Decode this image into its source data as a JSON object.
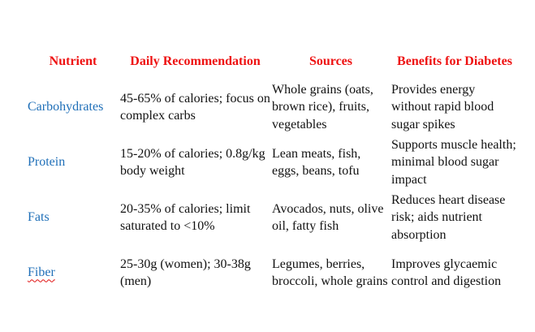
{
  "table": {
    "headers": {
      "nutrient": "Nutrient",
      "daily_recommendation": "Daily Recommendation",
      "sources": "Sources",
      "benefits": "Benefits for Diabetes"
    },
    "rows": [
      {
        "nutrient": "Carbohydrates",
        "daily_recommendation": "45-65% of calories; focus on complex carbs",
        "sources": "Whole grains (oats, brown rice), fruits, vegetables",
        "benefits": "Provides energy without rapid blood sugar spikes"
      },
      {
        "nutrient": "Protein",
        "daily_recommendation": "15-20% of calories; 0.8g/kg body weight",
        "sources": "Lean meats, fish, eggs, beans, tofu",
        "benefits": "Supports muscle health; minimal blood sugar impact"
      },
      {
        "nutrient": "Fats",
        "daily_recommendation": "20-35% of calories; limit saturated to <10%",
        "sources": "Avocados, nuts, olive oil, fatty fish",
        "benefits": "Reduces heart disease risk; aids nutrient absorption"
      },
      {
        "nutrient": "Fiber",
        "daily_recommendation": "25-30g (women); 30-38g (men)",
        "sources": "Legumes, berries, broccoli, whole grains",
        "benefits": "Improves glycaemic control and digestion"
      }
    ]
  },
  "colors": {
    "header_text": "#ee1111",
    "nutrient_text": "#1f6fb8",
    "body_text": "#111111",
    "spellcheck_underline": "#e01010"
  }
}
